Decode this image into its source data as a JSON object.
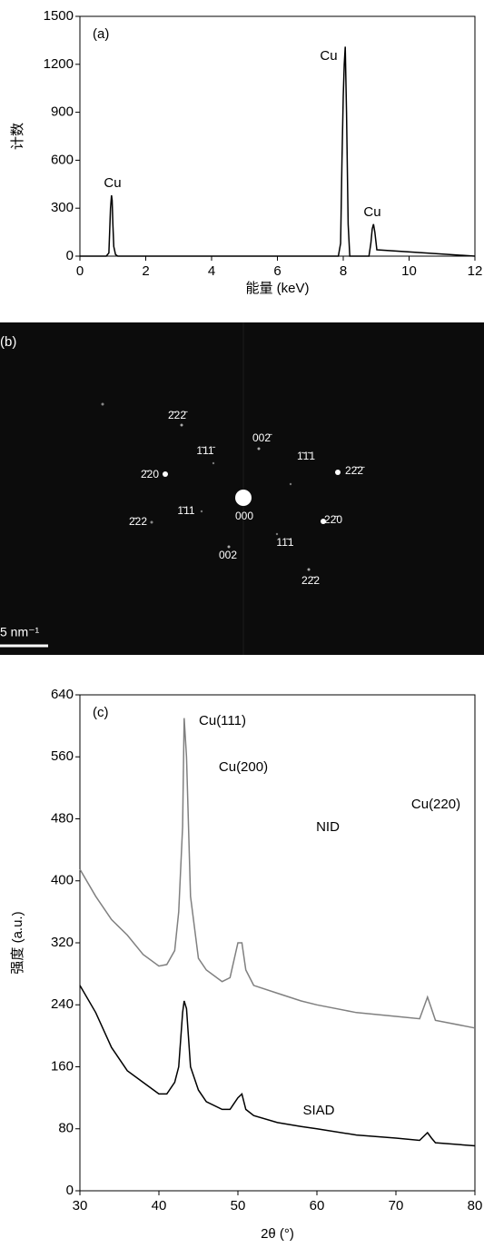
{
  "chart_data": [
    {
      "type": "line",
      "panel_label": "(a)",
      "xlabel": "能量 (keV)",
      "ylabel": "计数",
      "x": [
        0,
        0.8,
        0.88,
        0.93,
        0.96,
        0.98,
        1.0,
        1.03,
        1.08,
        1.15,
        7.85,
        7.92,
        7.96,
        8.0,
        8.03,
        8.06,
        8.1,
        8.15,
        8.2,
        8.78,
        8.84,
        8.88,
        8.92,
        8.96,
        9.02,
        12
      ],
      "values": [
        0,
        0,
        20,
        300,
        380,
        350,
        200,
        60,
        10,
        0,
        0,
        80,
        600,
        1000,
        1200,
        1310,
        900,
        200,
        0,
        0,
        80,
        170,
        200,
        150,
        40,
        0
      ],
      "color": "#000000",
      "annotations": [
        "Cu",
        "Cu",
        "Cu"
      ],
      "xlim": [
        0,
        12
      ],
      "xticks": [
        0,
        2,
        4,
        6,
        8,
        10,
        12
      ],
      "ylim": [
        0,
        1500
      ],
      "yticks": [
        0,
        300,
        600,
        900,
        1200,
        1500
      ]
    },
    {
      "type": "line",
      "panel_label": "(c)",
      "xlabel": "2θ (°)",
      "ylabel": "强度 (a.u.)",
      "x": [
        30,
        32,
        34,
        36,
        38,
        40,
        41,
        42,
        42.5,
        43,
        43.2,
        43.5,
        44,
        45,
        46,
        48,
        49,
        50,
        50.5,
        51,
        52,
        55,
        58,
        60,
        65,
        70,
        73,
        74,
        74.5,
        75,
        80
      ],
      "series": [
        {
          "name": "NID",
          "color": "#808080",
          "values": [
            415,
            380,
            350,
            330,
            305,
            290,
            292,
            310,
            360,
            470,
            610,
            560,
            380,
            300,
            285,
            270,
            275,
            320,
            320,
            285,
            265,
            255,
            245,
            240,
            230,
            225,
            222,
            250,
            235,
            220,
            210
          ]
        },
        {
          "name": "SIAD",
          "color": "#000000",
          "values": [
            265,
            230,
            185,
            155,
            140,
            125,
            125,
            140,
            160,
            230,
            245,
            235,
            160,
            130,
            115,
            105,
            105,
            120,
            125,
            105,
            97,
            88,
            83,
            80,
            72,
            68,
            65,
            75,
            68,
            62,
            58
          ]
        }
      ],
      "annotations": [
        "Cu(111)",
        "Cu(200)",
        "Cu(220)"
      ],
      "xlim": [
        30,
        80
      ],
      "xticks": [
        30,
        40,
        50,
        60,
        70,
        80
      ],
      "ylim": [
        0,
        640
      ],
      "yticks": [
        0,
        80,
        160,
        240,
        320,
        400,
        480,
        560,
        640
      ]
    }
  ],
  "image": {
    "panel_label": "(b)",
    "spot_labels": [
      "2̄22̄",
      "1̄11̄",
      "002̄",
      "2̄20",
      "1̄1̄1",
      "22̄2̄",
      "1̄11",
      "000",
      "22̄0",
      "2̄22",
      "11̄1",
      "002",
      "22̄2"
    ],
    "scale_bar": "5 nm⁻¹"
  }
}
